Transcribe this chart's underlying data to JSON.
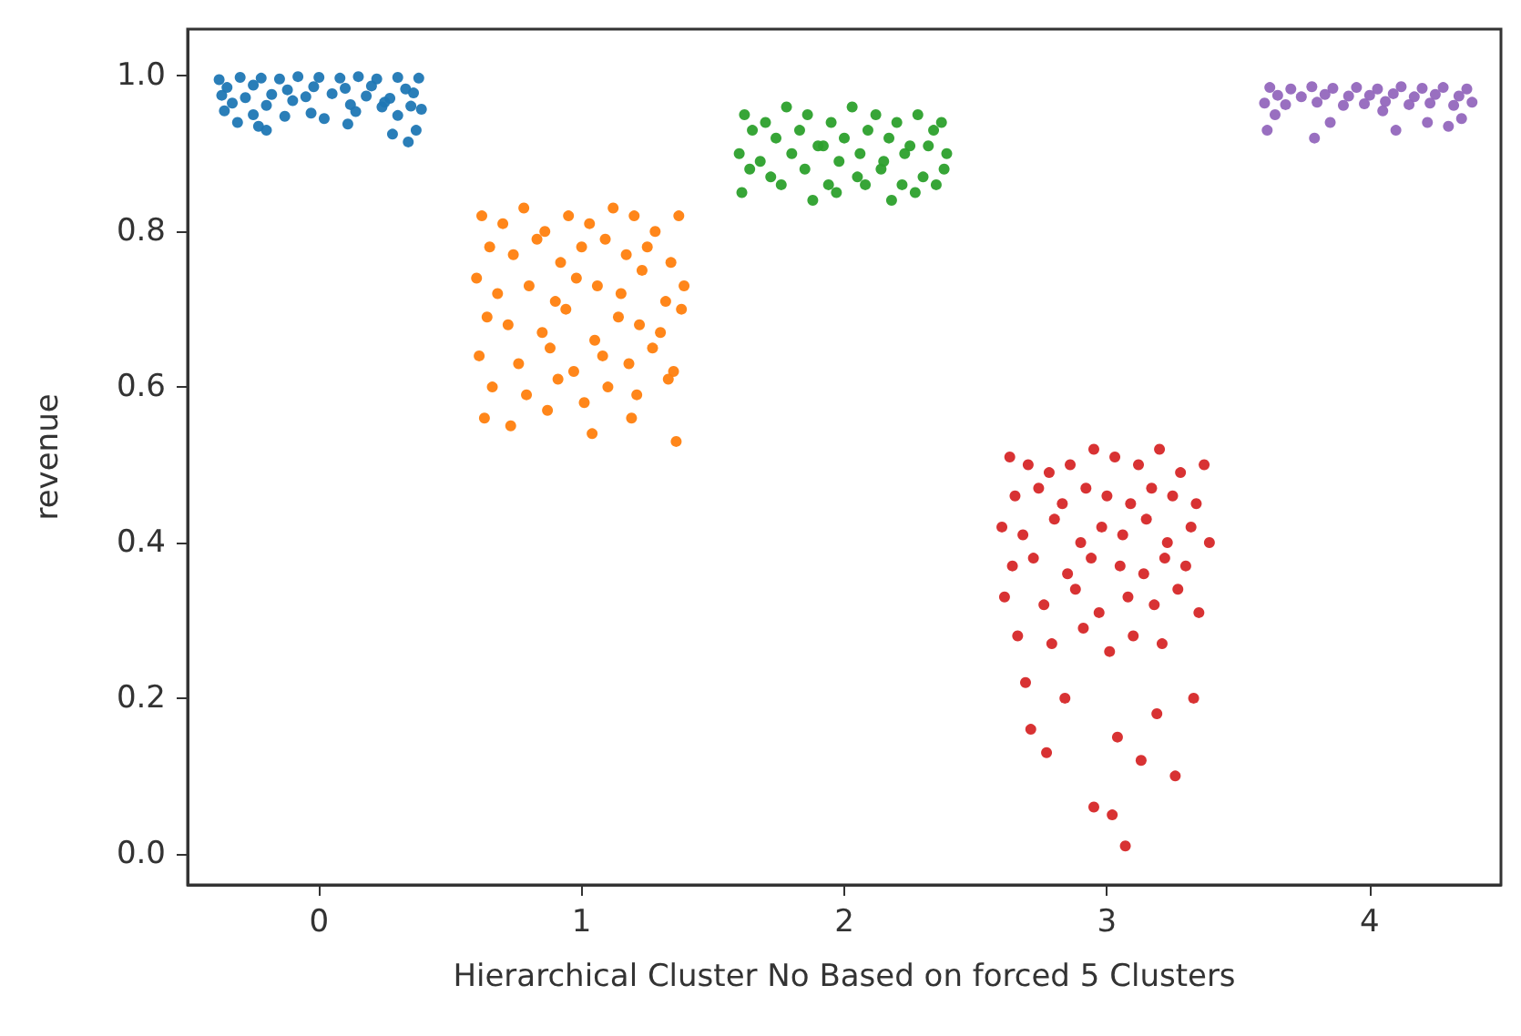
{
  "chart_data": {
    "type": "scatter",
    "xlabel": "Hierarchical Cluster No Based on forced 5 Clusters",
    "ylabel": "revenue",
    "marker": "circle",
    "grid": false,
    "xlim": [
      -0.5,
      4.5
    ],
    "xticks": [
      0,
      1,
      2,
      3,
      4
    ],
    "ylim": [
      -0.04,
      1.06
    ],
    "yticks": [
      {
        "value": 0,
        "label": "0.0"
      },
      0.2,
      0.4,
      0.6,
      0.8,
      {
        "value": 1,
        "label": "1.0"
      }
    ],
    "series": [
      {
        "color": "#1f77b4",
        "x": [
          -0.38,
          -0.3,
          -0.22,
          -0.15,
          -0.08,
          0,
          0.08,
          0.15,
          0.22,
          0.3,
          0.38,
          -0.35,
          -0.25,
          -0.12,
          -0.02,
          0.1,
          0.2,
          0.33,
          -0.37,
          -0.28,
          -0.18,
          -0.05,
          0.05,
          0.18,
          0.27,
          0.36,
          -0.33,
          -0.2,
          -0.1,
          0.12,
          0.25,
          0.35,
          -0.36,
          -0.25,
          -0.13,
          -0.03,
          0.14,
          0.3,
          0.39,
          -0.31,
          -0.23,
          -0.2,
          0.02,
          0.11,
          0.24,
          0.28,
          0.37,
          0.34
        ],
        "values": [
          0.995,
          0.998,
          0.997,
          0.996,
          0.999,
          0.998,
          0.997,
          0.999,
          0.996,
          0.998,
          0.997,
          0.985,
          0.988,
          0.982,
          0.986,
          0.984,
          0.987,
          0.983,
          0.975,
          0.972,
          0.976,
          0.973,
          0.977,
          0.974,
          0.971,
          0.978,
          0.965,
          0.962,
          0.968,
          0.963,
          0.966,
          0.961,
          0.955,
          0.95,
          0.948,
          0.952,
          0.954,
          0.949,
          0.957,
          0.94,
          0.935,
          0.93,
          0.945,
          0.938,
          0.96,
          0.925,
          0.93,
          0.915
        ]
      },
      {
        "color": "#ff7f0e",
        "x": [
          0.62,
          0.7,
          0.78,
          0.86,
          0.95,
          1.03,
          1.12,
          1.2,
          1.28,
          1.37,
          0.65,
          0.74,
          0.83,
          0.92,
          1.0,
          1.09,
          1.17,
          1.25,
          1.34,
          0.6,
          0.68,
          0.8,
          0.9,
          0.98,
          1.06,
          1.15,
          1.23,
          1.32,
          1.39,
          0.64,
          0.72,
          0.85,
          0.94,
          1.05,
          1.14,
          1.22,
          1.3,
          1.38,
          0.61,
          0.76,
          0.88,
          0.97,
          1.08,
          1.18,
          1.27,
          1.35,
          0.66,
          0.79,
          0.91,
          1.01,
          1.1,
          1.21,
          1.33,
          0.63,
          0.73,
          0.87,
          1.04,
          1.19,
          1.36
        ],
        "values": [
          0.82,
          0.81,
          0.83,
          0.8,
          0.82,
          0.81,
          0.83,
          0.82,
          0.8,
          0.82,
          0.78,
          0.77,
          0.79,
          0.76,
          0.78,
          0.79,
          0.77,
          0.78,
          0.76,
          0.74,
          0.72,
          0.73,
          0.71,
          0.74,
          0.73,
          0.72,
          0.75,
          0.71,
          0.73,
          0.69,
          0.68,
          0.67,
          0.7,
          0.66,
          0.69,
          0.68,
          0.67,
          0.7,
          0.64,
          0.63,
          0.65,
          0.62,
          0.64,
          0.63,
          0.65,
          0.62,
          0.6,
          0.59,
          0.61,
          0.58,
          0.6,
          0.59,
          0.61,
          0.56,
          0.55,
          0.57,
          0.54,
          0.56,
          0.53
        ]
      },
      {
        "color": "#2ca02c",
        "x": [
          1.62,
          1.7,
          1.78,
          1.86,
          1.95,
          2.03,
          2.12,
          2.2,
          2.28,
          2.37,
          1.65,
          1.74,
          1.83,
          1.92,
          2.0,
          2.09,
          2.17,
          2.25,
          2.34,
          1.6,
          1.68,
          1.8,
          1.9,
          1.98,
          2.06,
          2.15,
          2.23,
          2.32,
          2.39,
          1.64,
          1.72,
          1.85,
          1.94,
          2.05,
          2.14,
          2.22,
          2.3,
          2.38,
          1.61,
          1.76,
          1.88,
          1.97,
          2.08,
          2.18,
          2.27,
          2.35
        ],
        "values": [
          0.95,
          0.94,
          0.96,
          0.95,
          0.94,
          0.96,
          0.95,
          0.94,
          0.95,
          0.94,
          0.93,
          0.92,
          0.93,
          0.91,
          0.92,
          0.93,
          0.92,
          0.91,
          0.93,
          0.9,
          0.89,
          0.9,
          0.91,
          0.89,
          0.9,
          0.89,
          0.9,
          0.91,
          0.9,
          0.88,
          0.87,
          0.88,
          0.86,
          0.87,
          0.88,
          0.86,
          0.87,
          0.88,
          0.85,
          0.86,
          0.84,
          0.85,
          0.86,
          0.84,
          0.85,
          0.86
        ]
      },
      {
        "color": "#d62728",
        "x": [
          2.63,
          2.7,
          2.78,
          2.86,
          2.95,
          3.03,
          3.12,
          3.2,
          3.28,
          3.37,
          2.65,
          2.74,
          2.83,
          2.92,
          3.0,
          3.09,
          3.17,
          3.25,
          3.34,
          2.6,
          2.68,
          2.8,
          2.9,
          2.98,
          3.06,
          3.15,
          3.23,
          3.32,
          3.39,
          2.64,
          2.72,
          2.85,
          2.94,
          3.05,
          3.14,
          3.22,
          3.3,
          2.61,
          2.76,
          2.88,
          2.97,
          3.08,
          3.18,
          3.27,
          3.35,
          2.66,
          2.79,
          2.91,
          3.01,
          3.1,
          3.21,
          3.33,
          2.69,
          2.84,
          3.04,
          3.19,
          2.77,
          2.95,
          3.13,
          3.26,
          2.71,
          3.07,
          3.02
        ],
        "values": [
          0.51,
          0.5,
          0.49,
          0.5,
          0.52,
          0.51,
          0.5,
          0.52,
          0.49,
          0.5,
          0.46,
          0.47,
          0.45,
          0.47,
          0.46,
          0.45,
          0.47,
          0.46,
          0.45,
          0.42,
          0.41,
          0.43,
          0.4,
          0.42,
          0.41,
          0.43,
          0.4,
          0.42,
          0.4,
          0.37,
          0.38,
          0.36,
          0.38,
          0.37,
          0.36,
          0.38,
          0.37,
          0.33,
          0.32,
          0.34,
          0.31,
          0.33,
          0.32,
          0.34,
          0.31,
          0.28,
          0.27,
          0.29,
          0.26,
          0.28,
          0.27,
          0.2,
          0.22,
          0.2,
          0.15,
          0.18,
          0.13,
          0.06,
          0.12,
          0.1,
          0.16,
          0.01,
          0.05
        ]
      },
      {
        "color": "#9467bd",
        "x": [
          3.62,
          3.7,
          3.78,
          3.86,
          3.95,
          4.03,
          4.12,
          4.2,
          4.28,
          4.37,
          3.65,
          3.74,
          3.83,
          3.92,
          4.0,
          4.09,
          4.17,
          4.25,
          4.34,
          3.6,
          3.68,
          3.8,
          3.9,
          3.98,
          4.06,
          4.15,
          4.23,
          4.32,
          4.39,
          3.64,
          3.85,
          4.05,
          4.22,
          4.35,
          3.61,
          3.79,
          4.1,
          4.3
        ],
        "values": [
          0.985,
          0.983,
          0.986,
          0.984,
          0.985,
          0.983,
          0.986,
          0.984,
          0.985,
          0.983,
          0.975,
          0.973,
          0.976,
          0.974,
          0.975,
          0.977,
          0.973,
          0.976,
          0.974,
          0.965,
          0.963,
          0.966,
          0.962,
          0.964,
          0.967,
          0.963,
          0.965,
          0.962,
          0.966,
          0.95,
          0.94,
          0.955,
          0.94,
          0.945,
          0.93,
          0.92,
          0.93,
          0.935
        ]
      }
    ]
  }
}
